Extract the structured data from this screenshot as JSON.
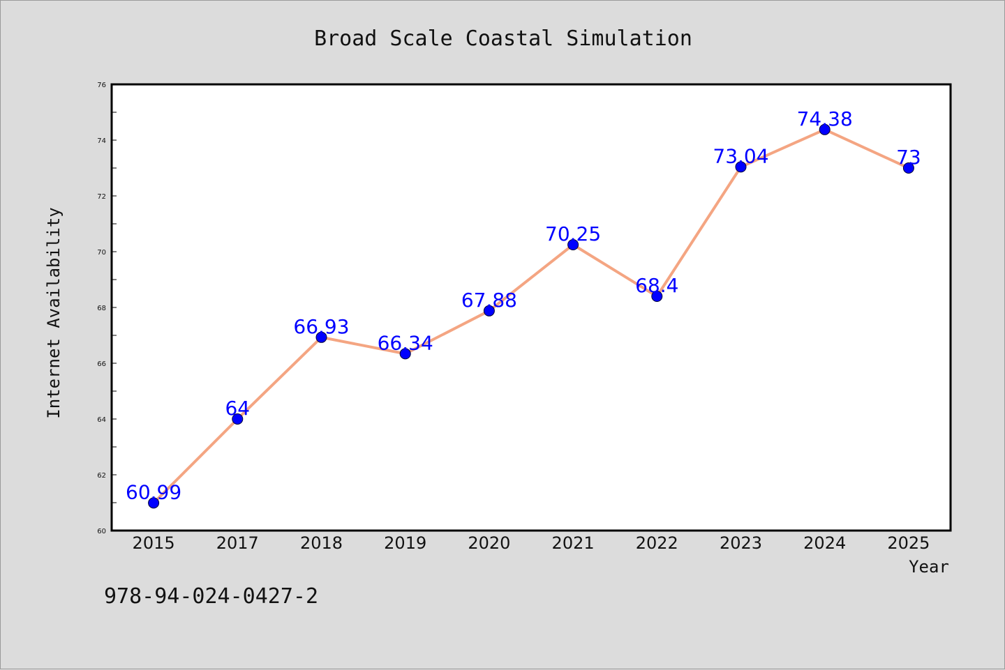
{
  "chart_data": {
    "type": "line",
    "title": "Broad Scale Coastal Simulation",
    "xlabel": "Year",
    "ylabel": "Internet Availability",
    "categories": [
      "2015",
      "2017",
      "2018",
      "2019",
      "2020",
      "2021",
      "2022",
      "2023",
      "2024",
      "2025"
    ],
    "series": [
      {
        "values": [
          60.99,
          64,
          66.93,
          66.34,
          67.88,
          70.25,
          68.4,
          73.04,
          74.38,
          73
        ],
        "labels": [
          "60.99",
          "64",
          "66.93",
          "66.34",
          "67.88",
          "70.25",
          "68.4",
          "73.04",
          "74.38",
          "73"
        ],
        "line_color": "#f4a582",
        "marker_color": "#0000ff"
      }
    ],
    "ylim": [
      60,
      76
    ],
    "yticks": [
      "60",
      "62",
      "64",
      "66",
      "68",
      "70",
      "72",
      "74",
      "76"
    ],
    "grid": false,
    "legend": "none"
  },
  "footnote": "978-94-024-0427-2",
  "colors": {
    "background": "#dcdcdc",
    "plot_background": "#ffffff",
    "line": "#f4a582",
    "marker": "#0000ff",
    "data_label": "#0000ff"
  }
}
